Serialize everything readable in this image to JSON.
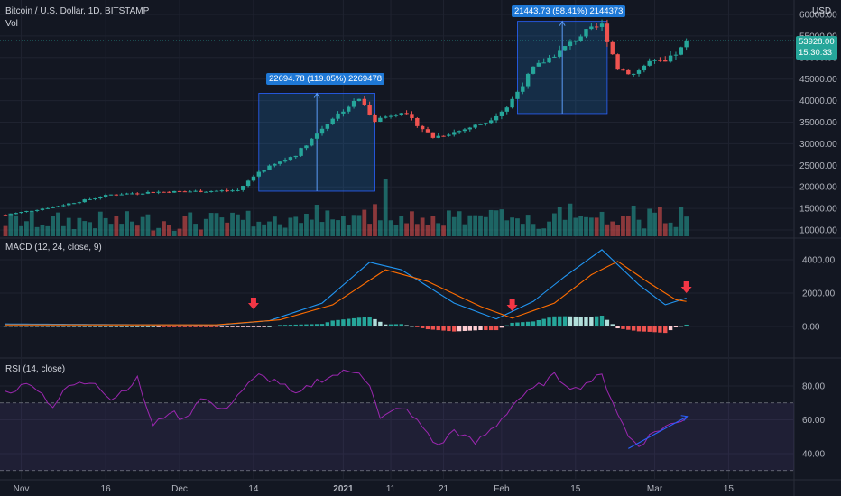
{
  "header": {
    "title": "Bitcoin / U.S. Dollar, 1D, BITSTAMP",
    "vol_label": "Vol",
    "currency": "USD",
    "macd_title": "MACD (12, 24, close, 9)",
    "rsi_title": "RSI (14, close)"
  },
  "price_tag": {
    "value": "53928.00",
    "countdown": "15:30:33"
  },
  "measures": [
    {
      "text": "22694.78 (119.05%) 2269478"
    },
    {
      "text": "21443.73 (58.41%) 2144373"
    }
  ],
  "colors": {
    "up": "#26a69a",
    "down": "#ef5350",
    "macd": "#2196f3",
    "signal": "#ff6d00",
    "rsi": "#9c27b0",
    "measure": "#1e78d6"
  },
  "chart_data": [
    {
      "type": "candlestick",
      "title": "Bitcoin / U.S. Dollar, 1D, BITSTAMP",
      "x_ticks": [
        "Nov",
        "16",
        "Dec",
        "14",
        "2021",
        "11",
        "21",
        "Feb",
        "15",
        "Mar",
        "15"
      ],
      "y_ticks": [
        10000,
        15000,
        20000,
        25000,
        30000,
        35000,
        40000,
        45000,
        50000,
        55000,
        60000
      ],
      "ylim": [
        9000,
        61500
      ],
      "close_anchors": [
        [
          0,
          13500
        ],
        [
          10,
          15600
        ],
        [
          20,
          18200
        ],
        [
          28,
          18800
        ],
        [
          38,
          19000
        ],
        [
          44,
          19200
        ],
        [
          48,
          23500
        ],
        [
          55,
          27500
        ],
        [
          62,
          36000
        ],
        [
          67,
          40500
        ],
        [
          70,
          35500
        ],
        [
          75,
          37500
        ],
        [
          81,
          31500
        ],
        [
          86,
          33000
        ],
        [
          91,
          35000
        ],
        [
          95,
          38500
        ],
        [
          100,
          47500
        ],
        [
          105,
          51500
        ],
        [
          110,
          56000
        ],
        [
          113,
          57500
        ],
        [
          116,
          47500
        ],
        [
          119,
          46200
        ],
        [
          122,
          49000
        ],
        [
          125,
          48800
        ],
        [
          128,
          52000
        ],
        [
          129,
          53928
        ]
      ],
      "last_close": 53928
    },
    {
      "type": "bar",
      "title": "Vol",
      "values_note": "volume histogram at bottom of price pane"
    },
    {
      "type": "line",
      "title": "MACD (12, 24, close, 9)",
      "y_ticks": [
        0,
        2000,
        4000
      ],
      "ylim": [
        -1600,
        4700
      ],
      "series": [
        {
          "anchors": [
            [
              0,
              150
            ],
            [
              40,
              80
            ],
            [
              50,
              350
            ],
            [
              60,
              1400
            ],
            [
              69,
              3850
            ],
            [
              75,
              3400
            ],
            [
              85,
              1400
            ],
            [
              93,
              450
            ],
            [
              100,
              1500
            ],
            [
              106,
              3000
            ],
            [
              113,
              4600
            ],
            [
              120,
              2500
            ],
            [
              125,
              1300
            ],
            [
              129,
              1700
            ]
          ]
        },
        {
          "anchors": [
            [
              0,
              100
            ],
            [
              40,
              100
            ],
            [
              52,
              400
            ],
            [
              62,
              1300
            ],
            [
              72,
              3400
            ],
            [
              80,
              2700
            ],
            [
              90,
              1200
            ],
            [
              96,
              500
            ],
            [
              104,
              1400
            ],
            [
              111,
              3100
            ],
            [
              116,
              3900
            ],
            [
              122,
              2600
            ],
            [
              127,
              1600
            ],
            [
              129,
              1500
            ]
          ]
        }
      ]
    },
    {
      "type": "line",
      "title": "RSI (14, close)",
      "y_ticks": [
        40,
        60,
        80
      ],
      "ylim": [
        25,
        95
      ],
      "bands": [
        30,
        70
      ],
      "series": [
        {
          "anchors": [
            [
              0,
              76
            ],
            [
              5,
              82
            ],
            [
              9,
              68
            ],
            [
              12,
              80
            ],
            [
              17,
              83
            ],
            [
              20,
              72
            ],
            [
              25,
              84
            ],
            [
              28,
              56
            ],
            [
              31,
              65
            ],
            [
              34,
              60
            ],
            [
              37,
              74
            ],
            [
              41,
              65
            ],
            [
              45,
              78
            ],
            [
              48,
              86
            ],
            [
              52,
              82
            ],
            [
              55,
              74
            ],
            [
              59,
              83
            ],
            [
              64,
              88
            ],
            [
              67,
              89
            ],
            [
              69,
              81
            ],
            [
              71,
              60
            ],
            [
              75,
              68
            ],
            [
              79,
              56
            ],
            [
              82,
              44
            ],
            [
              85,
              54
            ],
            [
              89,
              46
            ],
            [
              93,
              57
            ],
            [
              97,
              72
            ],
            [
              101,
              80
            ],
            [
              104,
              86
            ],
            [
              108,
              78
            ],
            [
              110,
              82
            ],
            [
              113,
              86
            ],
            [
              116,
              64
            ],
            [
              118,
              50
            ],
            [
              120,
              45
            ],
            [
              123,
              53
            ],
            [
              125,
              56
            ],
            [
              127,
              58
            ],
            [
              129,
              62
            ]
          ]
        }
      ]
    }
  ]
}
